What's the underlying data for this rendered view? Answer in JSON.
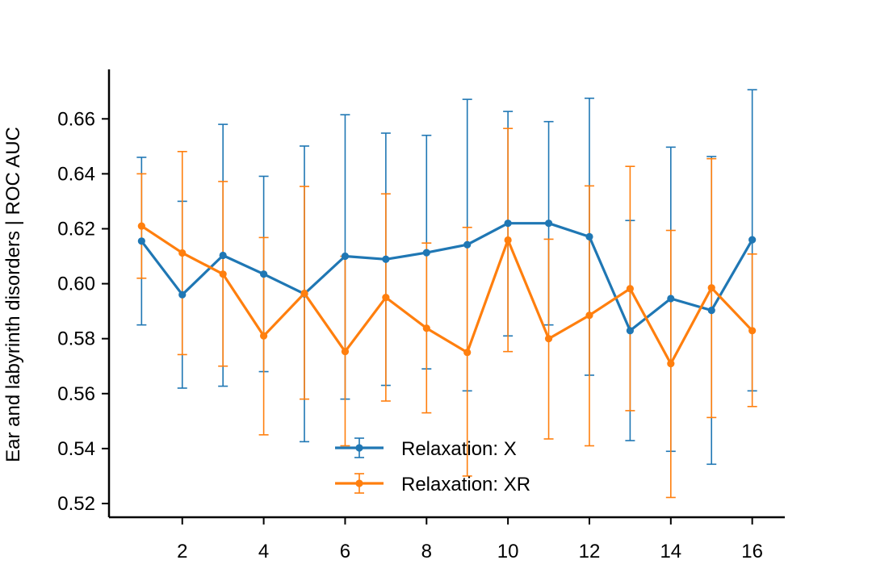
{
  "chart_data": {
    "type": "line",
    "title": "",
    "xlabel": "",
    "ylabel": "Ear and labyrinth disorders | ROC AUC",
    "xlim": [
      0.2,
      16.8
    ],
    "ylim": [
      0.515,
      0.678
    ],
    "xticks": [
      2,
      4,
      6,
      8,
      10,
      12,
      14,
      16
    ],
    "yticks": [
      0.52,
      0.54,
      0.56,
      0.58,
      0.6,
      0.62,
      0.64,
      0.66
    ],
    "ytick_labels": [
      "0.52",
      "0.54",
      "0.56",
      "0.58",
      "0.60",
      "0.62",
      "0.64",
      "0.66"
    ],
    "grid": false,
    "legend_position": "lower center",
    "x": [
      1,
      2,
      3,
      4,
      5,
      6,
      7,
      8,
      9,
      10,
      11,
      12,
      13,
      14,
      15,
      16
    ],
    "series": [
      {
        "name": "Relaxation: X",
        "color": "#1f77b4",
        "values": [
          0.6155,
          0.596,
          0.6103,
          0.6035,
          0.5963,
          0.61,
          0.6089,
          0.6113,
          0.6142,
          0.622,
          0.622,
          0.6171,
          0.5829,
          0.5946,
          0.5903,
          0.616
        ],
        "err_low": [
          0.585,
          0.562,
          0.5627,
          0.568,
          0.5425,
          0.558,
          0.563,
          0.569,
          0.561,
          0.581,
          0.585,
          0.5667,
          0.5429,
          0.539,
          0.5343,
          0.561
        ],
        "err_high": [
          0.646,
          0.63,
          0.658,
          0.6391,
          0.6501,
          0.6615,
          0.6548,
          0.654,
          0.6671,
          0.6627,
          0.659,
          0.6675,
          0.623,
          0.6497,
          0.6463,
          0.6706
        ]
      },
      {
        "name": "Relaxation: XR",
        "color": "#ff7f0e",
        "values": [
          0.621,
          0.6112,
          0.6035,
          0.581,
          0.5965,
          0.5753,
          0.595,
          0.5838,
          0.575,
          0.6159,
          0.58,
          0.5885,
          0.5982,
          0.5709,
          0.5985,
          0.5829
        ],
        "err_low": [
          0.602,
          0.5742,
          0.57,
          0.545,
          0.558,
          0.541,
          0.5573,
          0.553,
          0.53,
          0.5753,
          0.5435,
          0.541,
          0.5538,
          0.5222,
          0.5513,
          0.5553
        ],
        "err_high": [
          0.64,
          0.6481,
          0.6372,
          0.6168,
          0.6354,
          0.61,
          0.6327,
          0.6148,
          0.6205,
          0.6565,
          0.6162,
          0.6356,
          0.6427,
          0.6194,
          0.6455,
          0.6108
        ]
      }
    ]
  }
}
